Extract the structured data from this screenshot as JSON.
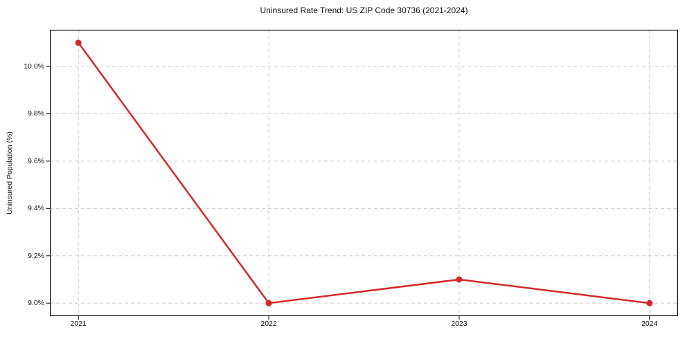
{
  "chart_data": {
    "type": "line",
    "title": "Uninsured Rate Trend: US ZIP Code 30736 (2021-2024)",
    "xlabel": "",
    "ylabel": "Uninsured Population (%)",
    "x": [
      2021,
      2022,
      2023,
      2024
    ],
    "values": [
      10.1,
      9.0,
      9.1,
      9.0
    ],
    "x_tick_labels": [
      "2021",
      "2022",
      "2023",
      "2024"
    ],
    "y_ticks": [
      9.0,
      9.2,
      9.4,
      9.6,
      9.8,
      10.0
    ],
    "y_tick_labels": [
      "9.0%",
      "9.2%",
      "9.4%",
      "9.6%",
      "9.8%",
      "10.0%"
    ],
    "xlim": [
      2020.85,
      2024.15
    ],
    "ylim": [
      8.945,
      10.155
    ],
    "grid": true,
    "grid_style": "dashed",
    "legend": "none",
    "line_color": "#d62728",
    "marker": "circle",
    "marker_radius": 4.5,
    "line_width": 2.5,
    "spine_color": "#000000"
  }
}
